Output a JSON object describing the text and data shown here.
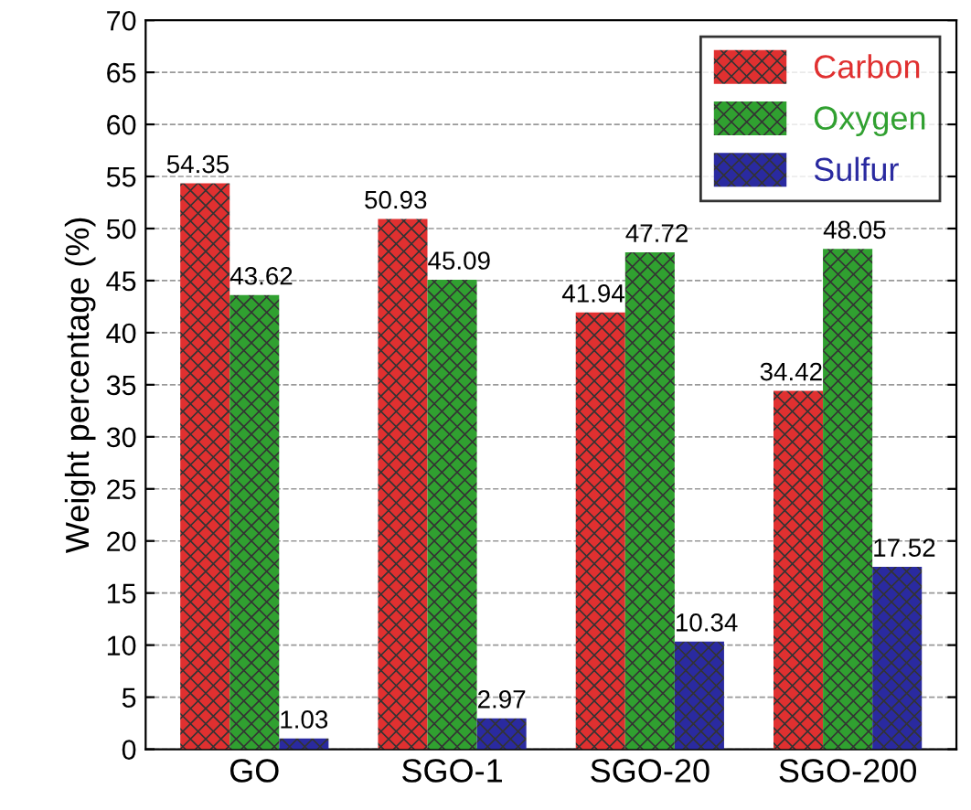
{
  "chart_data": {
    "type": "bar",
    "ylabel": "Weight percentage (%)",
    "categories": [
      "GO",
      "SGO-1",
      "SGO-20",
      "SGO-200"
    ],
    "series": [
      {
        "name": "Carbon",
        "color": "#e03030",
        "values": [
          54.35,
          50.93,
          41.94,
          34.42
        ]
      },
      {
        "name": "Oxygen",
        "color": "#30a030",
        "values": [
          43.62,
          45.09,
          47.72,
          48.05
        ]
      },
      {
        "name": "Sulfur",
        "color": "#2a2aa0",
        "values": [
          1.03,
          2.97,
          10.34,
          17.52
        ]
      }
    ],
    "ylim": [
      0,
      70
    ],
    "yticks": [
      0,
      5,
      10,
      15,
      20,
      25,
      30,
      35,
      40,
      45,
      50,
      55,
      60,
      65,
      70
    ],
    "grid": "y",
    "legend": "top right",
    "data_labels": true
  }
}
